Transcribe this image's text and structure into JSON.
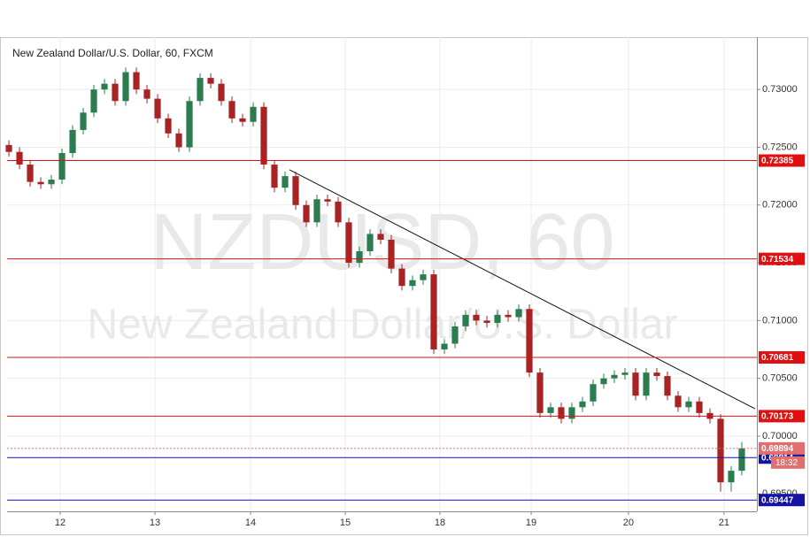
{
  "chart_data": {
    "type": "candlestick",
    "title": "New Zealand Dollar/U.S. Dollar, 60, FXCM",
    "watermark": "NZDUSD, 60",
    "watermark_subtitle": "New Zealand Dollar/U.S. Dollar",
    "up_color": "#2b7d4f",
    "down_color": "#a82424",
    "open": [
      0.7252,
      0.7246,
      0.7235,
      0.722,
      0.7218,
      0.7222,
      0.7245,
      0.7265,
      0.728,
      0.73,
      0.7305,
      0.729,
      0.7315,
      0.73,
      0.7292,
      0.7275,
      0.7262,
      0.725,
      0.729,
      0.731,
      0.7305,
      0.729,
      0.7275,
      0.7272,
      0.7285,
      0.7235,
      0.7215,
      0.7225,
      0.72,
      0.7185,
      0.7205,
      0.7203,
      0.7185,
      0.715,
      0.716,
      0.7175,
      0.717,
      0.7145,
      0.713,
      0.7135,
      0.714,
      0.7075,
      0.708,
      0.7095,
      0.7105,
      0.71,
      0.7098,
      0.7105,
      0.7103,
      0.711,
      0.7055,
      0.702,
      0.7025,
      0.7015,
      0.7025,
      0.703,
      0.7045,
      0.705,
      0.7053,
      0.7055,
      0.7035,
      0.7055,
      0.7052,
      0.7035,
      0.7025,
      0.703,
      0.702,
      0.7015,
      0.696,
      0.697
    ],
    "high": [
      0.7256,
      0.725,
      0.7239,
      0.7224,
      0.7226,
      0.7249,
      0.7269,
      0.7284,
      0.7304,
      0.7309,
      0.7309,
      0.7319,
      0.7319,
      0.7304,
      0.7296,
      0.7279,
      0.7266,
      0.7294,
      0.7314,
      0.7314,
      0.7309,
      0.7294,
      0.7279,
      0.7289,
      0.7289,
      0.7239,
      0.7229,
      0.7229,
      0.7204,
      0.7209,
      0.7209,
      0.7207,
      0.7189,
      0.7164,
      0.7179,
      0.7179,
      0.7174,
      0.7149,
      0.7139,
      0.7144,
      0.7144,
      0.7084,
      0.7099,
      0.7109,
      0.7109,
      0.7104,
      0.7109,
      0.7109,
      0.7114,
      0.7114,
      0.7059,
      0.7029,
      0.7029,
      0.7029,
      0.7034,
      0.7049,
      0.7054,
      0.7057,
      0.7059,
      0.7059,
      0.7059,
      0.7059,
      0.7056,
      0.7039,
      0.7034,
      0.7034,
      0.7024,
      0.7019,
      0.6974,
      0.6995
    ],
    "low": [
      0.7242,
      0.7231,
      0.7216,
      0.7214,
      0.7214,
      0.7218,
      0.7241,
      0.7261,
      0.7276,
      0.7296,
      0.7286,
      0.7286,
      0.7296,
      0.7288,
      0.7271,
      0.7258,
      0.7246,
      0.7246,
      0.7286,
      0.7301,
      0.7286,
      0.7271,
      0.7268,
      0.7268,
      0.7231,
      0.7211,
      0.7211,
      0.7196,
      0.7181,
      0.7181,
      0.7199,
      0.7181,
      0.7146,
      0.7146,
      0.7156,
      0.7166,
      0.7141,
      0.7126,
      0.7126,
      0.7131,
      0.7071,
      0.7071,
      0.7076,
      0.7091,
      0.7096,
      0.7094,
      0.7094,
      0.7099,
      0.7099,
      0.7051,
      0.7016,
      0.7016,
      0.7011,
      0.7011,
      0.7021,
      0.7026,
      0.7041,
      0.7046,
      0.7049,
      0.7031,
      0.7031,
      0.7048,
      0.7031,
      0.7021,
      0.7021,
      0.7016,
      0.7011,
      0.6952,
      0.6952,
      0.6966
    ],
    "close": [
      0.7246,
      0.7235,
      0.722,
      0.7218,
      0.7222,
      0.7245,
      0.7265,
      0.728,
      0.73,
      0.7305,
      0.729,
      0.7315,
      0.73,
      0.7292,
      0.7275,
      0.7262,
      0.725,
      0.729,
      0.731,
      0.7305,
      0.729,
      0.7275,
      0.7272,
      0.7285,
      0.7235,
      0.7215,
      0.7225,
      0.72,
      0.7185,
      0.7205,
      0.7203,
      0.7185,
      0.715,
      0.716,
      0.7175,
      0.717,
      0.7145,
      0.713,
      0.7135,
      0.714,
      0.7075,
      0.708,
      0.7095,
      0.7105,
      0.71,
      0.7098,
      0.7105,
      0.7103,
      0.711,
      0.7055,
      0.702,
      0.7025,
      0.7015,
      0.7025,
      0.703,
      0.7045,
      0.705,
      0.7053,
      0.7055,
      0.7035,
      0.7055,
      0.7052,
      0.7035,
      0.7025,
      0.703,
      0.702,
      0.7015,
      0.696,
      0.697,
      0.69894
    ],
    "xlim": [
      -0.17,
      70.42
    ],
    "xticks": [
      {
        "value": 4.83,
        "label": "12"
      },
      {
        "value": 13.75,
        "label": "13"
      },
      {
        "value": 22.75,
        "label": "14"
      },
      {
        "value": 31.67,
        "label": "15"
      },
      {
        "value": 40.58,
        "label": "18"
      },
      {
        "value": 49.17,
        "label": "19"
      },
      {
        "value": 58.33,
        "label": "20"
      },
      {
        "value": 67.33,
        "label": "21"
      }
    ],
    "ylim": [
      0.69349,
      0.73453
    ],
    "yticks": [
      {
        "value": 0.695,
        "label": "0.69500"
      },
      {
        "value": 0.7,
        "label": "0.70000"
      },
      {
        "value": 0.705,
        "label": "0.70500"
      },
      {
        "value": 0.71,
        "label": "0.71000"
      },
      {
        "value": 0.715,
        "label": "0.71500"
      },
      {
        "value": 0.72,
        "label": "0.72000"
      },
      {
        "value": 0.725,
        "label": "0.72500"
      },
      {
        "value": 0.73,
        "label": "0.73000"
      }
    ],
    "grid": true,
    "levels": [
      {
        "value": 0.72385,
        "color": "#e01010"
      },
      {
        "value": 0.71534,
        "color": "#e01010"
      },
      {
        "value": 0.70681,
        "color": "#e01010"
      },
      {
        "value": 0.70173,
        "color": "#e01010"
      },
      {
        "value": 0.69814,
        "color": "#1414a0"
      },
      {
        "value": 0.69447,
        "color": "#1414a0"
      }
    ],
    "current_price": {
      "value": 0.69894,
      "color": "#e07070",
      "timer": "18:32"
    },
    "trendline": {
      "x": [
        26.42,
        70.25
      ],
      "y": [
        0.72305,
        0.70237
      ],
      "color": "#111111"
    }
  }
}
